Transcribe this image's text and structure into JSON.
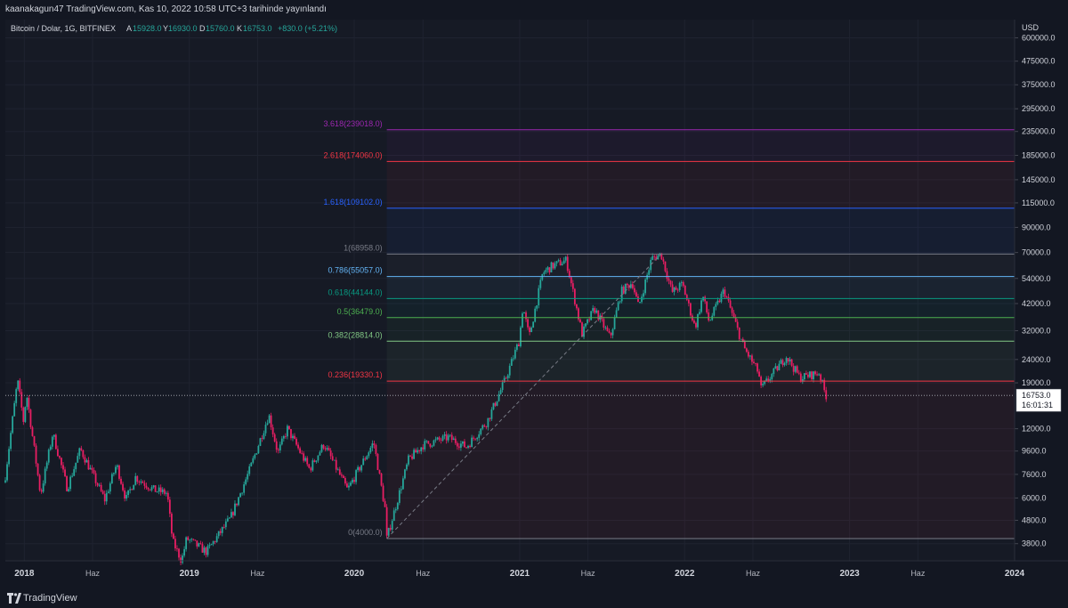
{
  "header": {
    "publish_line": "kaanakagun47 TradingView.com, Kas 10, 2022 10:58 UTC+3 tarihinde yayınlandı"
  },
  "footer": {
    "brand": "TradingView"
  },
  "colors": {
    "background": "#131722",
    "pane": "#161a25",
    "up_candle": "#26a69a",
    "down_candle": "#e91e63",
    "text": "#d1d4dc"
  },
  "chart_data": {
    "type": "candlestick",
    "symbol": "Bitcoin / Dolar, 1G, BITFINEX",
    "ohlc": {
      "open_label": "A",
      "open": "15928.0",
      "high_label": "Y",
      "high": "16930.0",
      "low_label": "D",
      "low": "15760.0",
      "close_label": "K",
      "close": "16753.0",
      "change": "+830.0 (+5.21%)"
    },
    "currency": "USD",
    "y_scale": "log",
    "ylim": [
      3200,
      720000
    ],
    "y_ticks": [
      "600000.0",
      "475000.0",
      "375000.0",
      "295000.0",
      "235000.0",
      "185000.0",
      "145000.0",
      "115000.0",
      "90000.0",
      "70000.0",
      "54000.0",
      "42000.0",
      "32000.0",
      "24000.0",
      "19000.0",
      "12000.0",
      "9600.0",
      "7600.0",
      "6000.0",
      "4800.0",
      "3800.0"
    ],
    "x_ticks": [
      {
        "label": "2018",
        "date": "2018-01-01",
        "major": true
      },
      {
        "label": "Haz",
        "date": "2018-06-01",
        "major": false
      },
      {
        "label": "2019",
        "date": "2019-01-01",
        "major": true
      },
      {
        "label": "Haz",
        "date": "2019-06-01",
        "major": false
      },
      {
        "label": "2020",
        "date": "2020-01-01",
        "major": true
      },
      {
        "label": "Haz",
        "date": "2020-06-01",
        "major": false
      },
      {
        "label": "2021",
        "date": "2021-01-01",
        "major": true
      },
      {
        "label": "Haz",
        "date": "2021-06-01",
        "major": false
      },
      {
        "label": "2022",
        "date": "2022-01-01",
        "major": true
      },
      {
        "label": "Haz",
        "date": "2022-06-01",
        "major": false
      },
      {
        "label": "2023",
        "date": "2023-01-01",
        "major": true
      },
      {
        "label": "Haz",
        "date": "2023-06-01",
        "major": false
      },
      {
        "label": "2024",
        "date": "2024-01-01",
        "major": true
      }
    ],
    "x_range": [
      "2017-11-20",
      "2024-01-01"
    ],
    "price_path": [
      [
        "2017-11-20",
        7500
      ],
      [
        "2017-12-17",
        19500
      ],
      [
        "2017-12-30",
        13000
      ],
      [
        "2018-01-06",
        17000
      ],
      [
        "2018-02-06",
        6200
      ],
      [
        "2018-03-05",
        11500
      ],
      [
        "2018-04-06",
        6600
      ],
      [
        "2018-05-05",
        9800
      ],
      [
        "2018-06-28",
        5900
      ],
      [
        "2018-07-24",
        8400
      ],
      [
        "2018-08-14",
        5900
      ],
      [
        "2018-09-04",
        7400
      ],
      [
        "2018-10-15",
        6500
      ],
      [
        "2018-11-13",
        6300
      ],
      [
        "2018-11-25",
        3900
      ],
      [
        "2018-12-15",
        3200
      ],
      [
        "2018-12-26",
        4000
      ],
      [
        "2019-02-08",
        3500
      ],
      [
        "2019-04-02",
        4900
      ],
      [
        "2019-05-15",
        8000
      ],
      [
        "2019-06-26",
        13800
      ],
      [
        "2019-07-16",
        9400
      ],
      [
        "2019-08-06",
        12000
      ],
      [
        "2019-09-24",
        8000
      ],
      [
        "2019-10-26",
        10300
      ],
      [
        "2019-12-17",
        6500
      ],
      [
        "2020-02-13",
        10500
      ],
      [
        "2020-03-12",
        5000
      ],
      [
        "2020-03-13",
        4000
      ],
      [
        "2020-04-30",
        8800
      ],
      [
        "2020-06-01",
        10200
      ],
      [
        "2020-07-27",
        11000
      ],
      [
        "2020-09-05",
        10000
      ],
      [
        "2020-10-21",
        12900
      ],
      [
        "2020-11-30",
        19600
      ],
      [
        "2020-12-31",
        29000
      ],
      [
        "2021-01-08",
        41000
      ],
      [
        "2021-01-22",
        30000
      ],
      [
        "2021-02-21",
        57000
      ],
      [
        "2021-03-13",
        61000
      ],
      [
        "2021-04-14",
        64800
      ],
      [
        "2021-05-19",
        31000
      ],
      [
        "2021-06-15",
        40000
      ],
      [
        "2021-07-20",
        29800
      ],
      [
        "2021-08-14",
        47500
      ],
      [
        "2021-09-07",
        52000
      ],
      [
        "2021-09-21",
        40500
      ],
      [
        "2021-10-20",
        66000
      ],
      [
        "2021-11-10",
        68900
      ],
      [
        "2021-12-04",
        47000
      ],
      [
        "2021-12-27",
        51000
      ],
      [
        "2022-01-24",
        33000
      ],
      [
        "2022-02-10",
        45500
      ],
      [
        "2022-02-24",
        35000
      ],
      [
        "2022-03-29",
        48000
      ],
      [
        "2022-05-12",
        27000
      ],
      [
        "2022-06-14",
        21000
      ],
      [
        "2022-06-18",
        17800
      ],
      [
        "2022-08-14",
        24800
      ],
      [
        "2022-09-13",
        20000
      ],
      [
        "2022-10-26",
        21000
      ],
      [
        "2022-11-08",
        17000
      ],
      [
        "2022-11-09",
        16100
      ],
      [
        "2022-11-10",
        16753
      ]
    ],
    "fib_levels": [
      {
        "label": "3.618(239018.0)",
        "value": 239018,
        "color": "#9c27b0"
      },
      {
        "label": "2.618(174060.0)",
        "value": 174060,
        "color": "#f23645"
      },
      {
        "label": "1.618(109102.0)",
        "value": 109102,
        "color": "#2962ff"
      },
      {
        "label": "1(68958.0)",
        "value": 68958,
        "color": "#787b86"
      },
      {
        "label": "0.786(55057.0)",
        "value": 55057,
        "color": "#64b5f6"
      },
      {
        "label": "0.618(44144.0)",
        "value": 44144,
        "color": "#089981"
      },
      {
        "label": "0.5(36479.0)",
        "value": 36479,
        "color": "#4caf50"
      },
      {
        "label": "0.382(28814.0)",
        "value": 28814,
        "color": "#81c784"
      },
      {
        "label": "0.236(19330.1)",
        "value": 19330.1,
        "color": "#f23645"
      },
      {
        "label": "0(4000.0)",
        "value": 4000,
        "color": "#787b86"
      }
    ],
    "fib_start_date": "2020-03-13",
    "fib_trend_line": [
      [
        "2020-03-13",
        4000
      ],
      [
        "2021-11-10",
        68958
      ]
    ],
    "current_price": {
      "value": 16753,
      "label": "16753.0",
      "countdown": "16:01:31"
    }
  }
}
